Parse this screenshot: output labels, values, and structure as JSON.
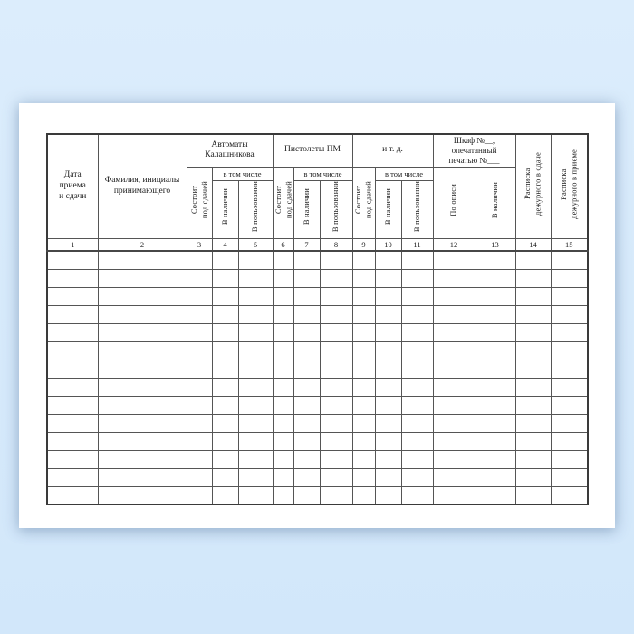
{
  "page": {
    "background_color_top": "#dcedfc",
    "background_color_bottom": "#d2e7fa",
    "paper_color": "#ffffff",
    "border_color": "#3a3a3a"
  },
  "table": {
    "headers": {
      "date": "Дата\nприема\nи сдачи",
      "name": "Фамилия, инициалы\nпринимающего",
      "group_ak": "Автоматы\nКалашникова",
      "group_pm": "Пистолеты ПМ",
      "group_etc": "и т. д.",
      "group_cabinet": "Шкаф №__,\nопечатанный\nпечатью №___",
      "including": "в том числе",
      "under_delivery": "Состоит\nпод сдачей",
      "available": "В наличии",
      "in_use": "В пользовании",
      "by_inventory": "По описи",
      "receipt_handover": "Расписка\nдежурного в сдаче",
      "receipt_accept": "Расписка\nдежурного в приеме"
    },
    "column_numbers": [
      "1",
      "2",
      "3",
      "4",
      "5",
      "6",
      "7",
      "8",
      "9",
      "10",
      "11",
      "12",
      "13",
      "14",
      "15"
    ],
    "column_count": 15,
    "empty_row_count": 14
  }
}
